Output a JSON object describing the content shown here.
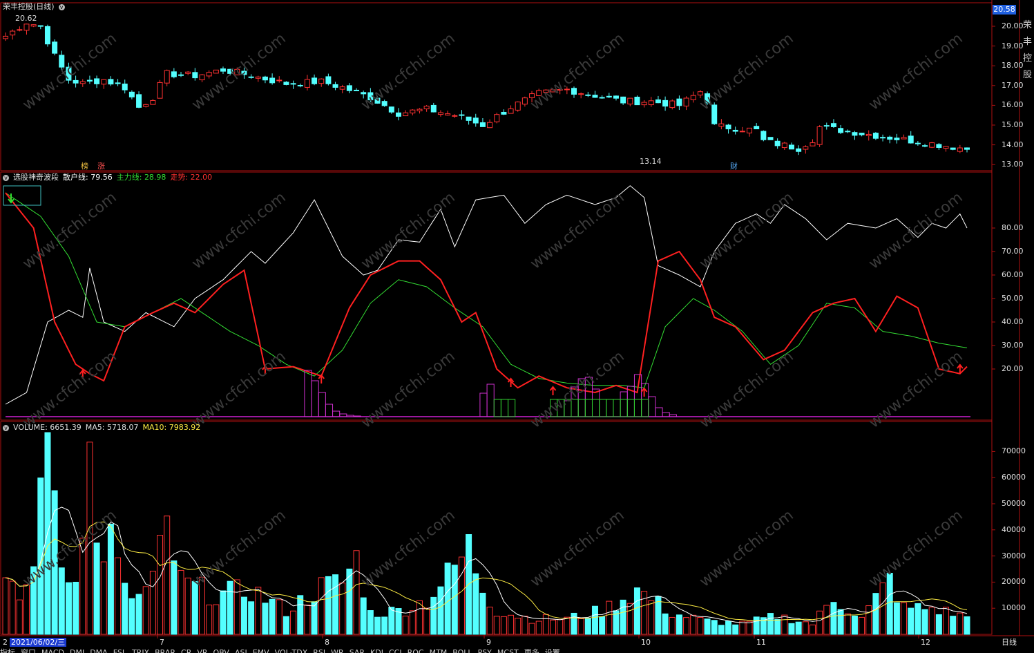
{
  "window": {
    "title": "荣丰控股",
    "period_label": "(日线)",
    "period_tab": "日线"
  },
  "price_panel": {
    "high_label": "20.62",
    "low_label": "13.14",
    "current_tag": "20.58",
    "tags": [
      "榜",
      "涨",
      "财"
    ],
    "axis_ticks": [
      "20.00",
      "19.00",
      "18.00",
      "17.00",
      "16.00",
      "15.00",
      "14.00",
      "13.00"
    ],
    "colors": {
      "up": "#ff3232",
      "down": "#54ffff"
    }
  },
  "indicator_panel": {
    "name": "选股神奇波段",
    "san_label": "散户线:",
    "san_value": "79.56",
    "zhu_label": "主力线:",
    "zhu_value": "28.98",
    "zou_label": "走势:",
    "zou_value": "22.00",
    "axis_ticks": [
      "80.00",
      "70.00",
      "60.00",
      "50.00",
      "40.00",
      "30.00",
      "20.00"
    ],
    "colors": {
      "san": "#ffffff",
      "zhu": "#33dd33",
      "zou": "#ff2020"
    }
  },
  "volume_panel": {
    "name": "VOLUME:",
    "value": "6651.39",
    "ma5_label": "MA5:",
    "ma5_value": "5718.07",
    "ma10_label": "MA10:",
    "ma10_value": "7983.92",
    "axis_ticks": [
      "70000",
      "60000",
      "50000",
      "40000",
      "30000",
      "20000",
      "10000"
    ]
  },
  "x_axis": {
    "date_chip": "2021/06/02/三",
    "month_labels": [
      "7",
      "8",
      "9",
      "10",
      "11",
      "12"
    ],
    "first_label": "2"
  },
  "bottom_tabs": [
    "指标",
    "窗口",
    "MACD",
    "DMI",
    "DMA",
    "FSL",
    "TRIX",
    "BRAR",
    "CR",
    "VR",
    "OBV",
    "ASI",
    "EMV",
    "VOL-TDX",
    "RSI",
    "WR",
    "SAR",
    "KDJ",
    "CCI",
    "ROC",
    "MTM",
    "BOLL",
    "PSY",
    "MCST",
    "更多",
    "设置"
  ],
  "watermark": "www.cfchi.com",
  "right_strip": [
    "荣",
    "丰",
    "控",
    "股"
  ]
}
